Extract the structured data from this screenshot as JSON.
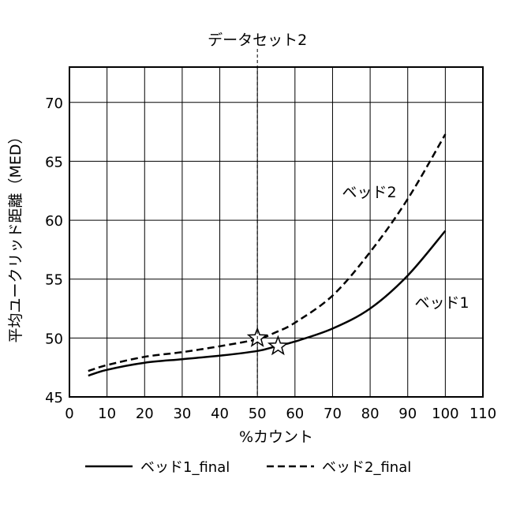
{
  "chart_data": {
    "type": "line",
    "xlabel": "%カウント",
    "ylabel": "平均ユークリッド距離（MED）",
    "xlim": [
      0,
      110
    ],
    "ylim": [
      45,
      73
    ],
    "xticks": [
      0,
      10,
      20,
      30,
      40,
      50,
      60,
      70,
      80,
      90,
      100,
      110
    ],
    "yticks": [
      45,
      50,
      55,
      60,
      65,
      70
    ],
    "grid": true,
    "series": [
      {
        "name": "ベッド1_final",
        "style": "solid",
        "label": "ベッド1",
        "x": [
          5,
          10,
          20,
          30,
          40,
          50,
          55,
          60,
          70,
          80,
          90,
          100
        ],
        "y": [
          46.8,
          47.3,
          47.9,
          48.2,
          48.5,
          48.9,
          49.3,
          49.7,
          50.8,
          52.5,
          55.3,
          59.1
        ]
      },
      {
        "name": "ベッド2_final",
        "style": "dashed",
        "label": "ベッド2",
        "x": [
          5,
          10,
          20,
          30,
          40,
          50,
          55,
          60,
          70,
          80,
          90,
          100
        ],
        "y": [
          47.2,
          47.7,
          48.4,
          48.8,
          49.3,
          49.9,
          50.5,
          51.3,
          53.6,
          57.3,
          61.8,
          67.3
        ]
      }
    ],
    "annotations": {
      "vline": {
        "x": 50,
        "label": "データセット2"
      },
      "stars": [
        {
          "x": 50,
          "y": 50.0
        },
        {
          "x": 55.5,
          "y": 49.3
        }
      ]
    },
    "legend": {
      "position": "bottom"
    }
  }
}
